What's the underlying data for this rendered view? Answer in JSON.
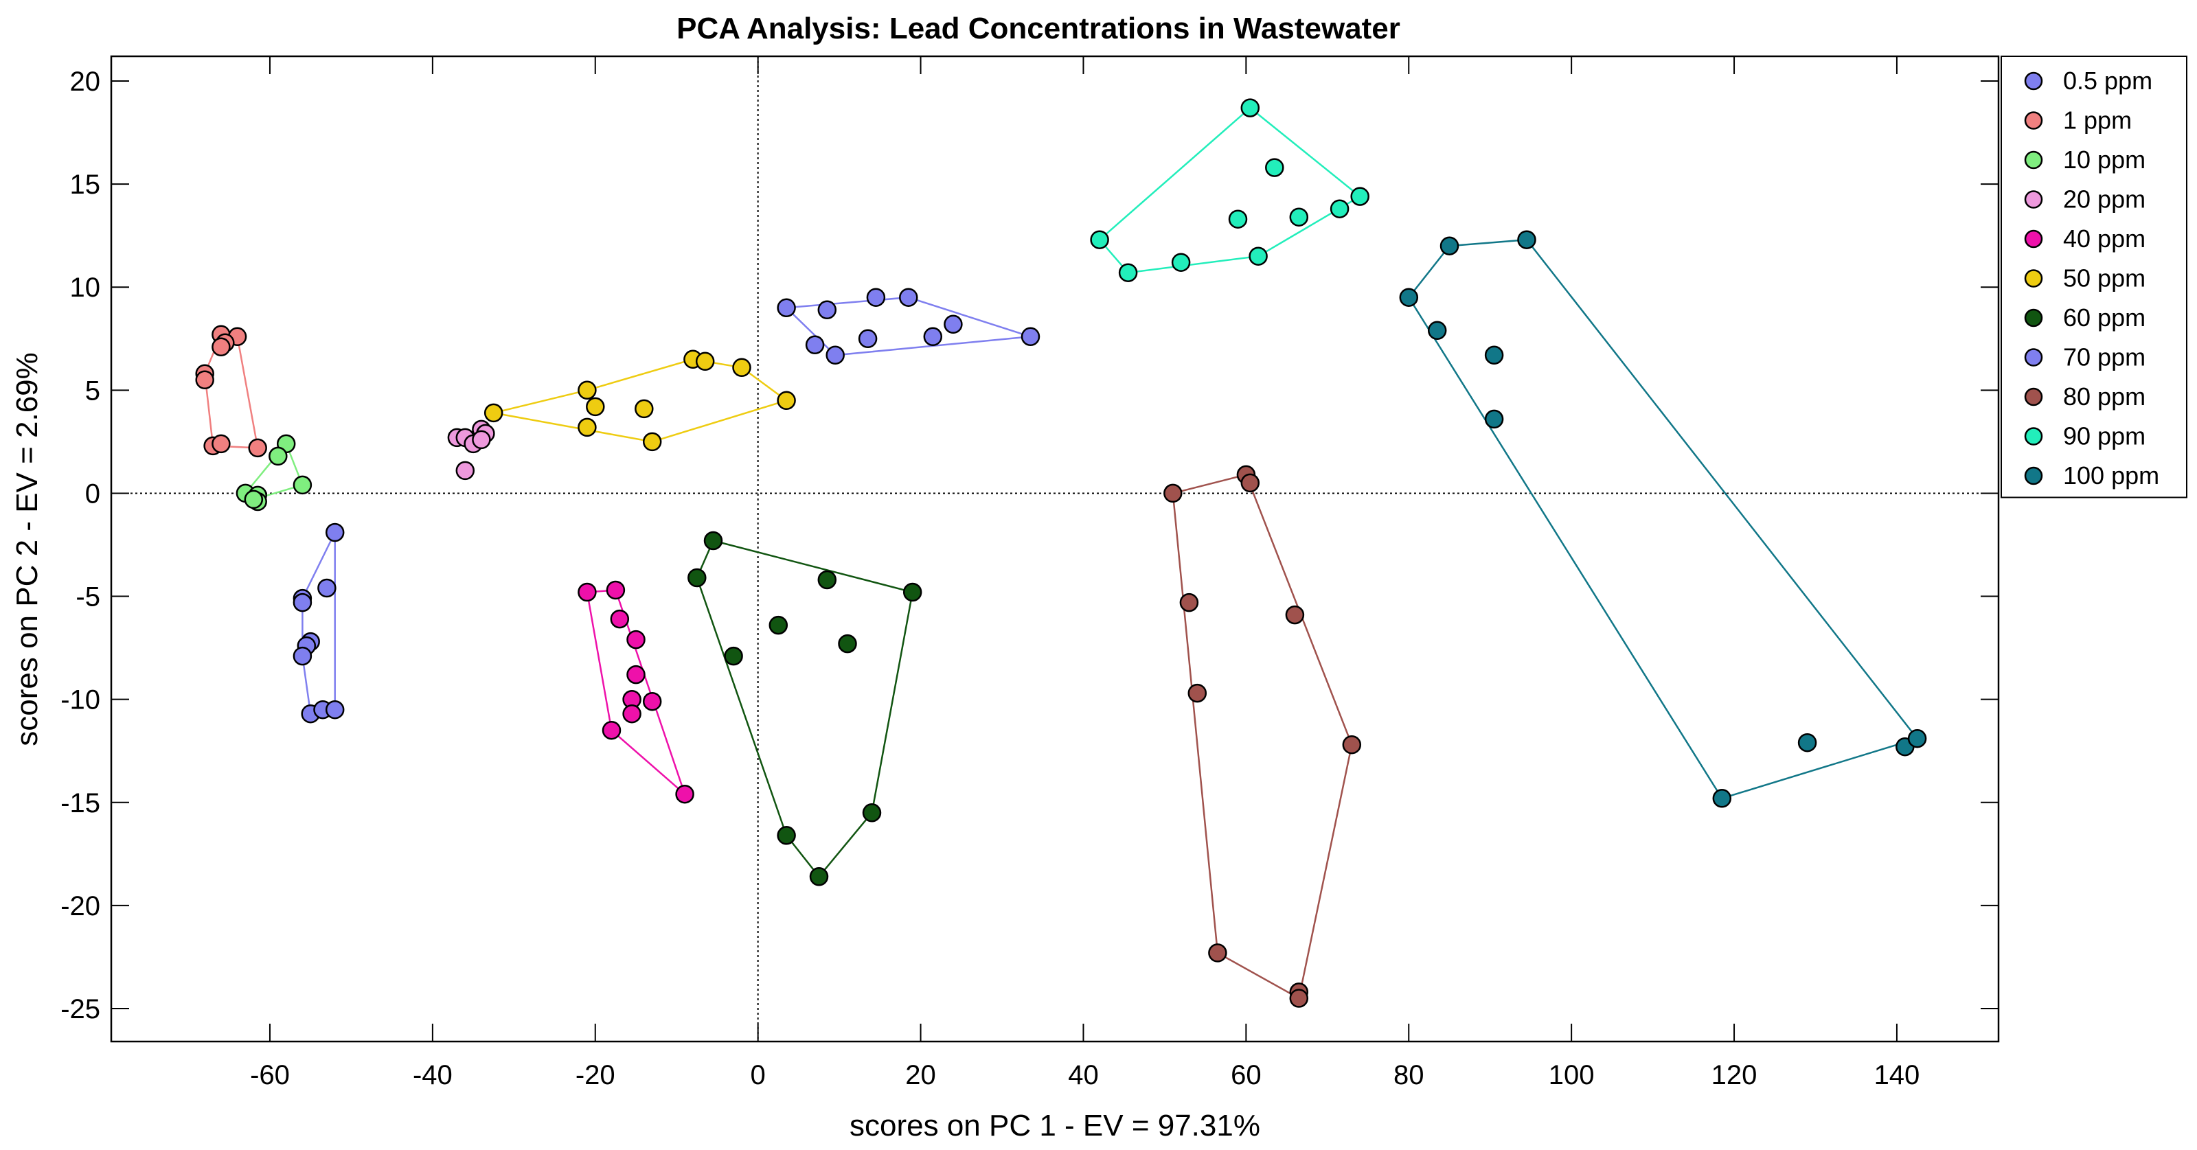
{
  "chart_data": {
    "type": "scatter",
    "title": "PCA Analysis: Lead Concentrations in Wastewater",
    "xlabel": "scores on PC 1 - EV = 97.31%",
    "ylabel": "scores on PC 2 - EV = 2.69%",
    "xlim": [
      -79.5,
      152.5
    ],
    "ylim": [
      -26.6,
      21.2
    ],
    "xticks": [
      -60,
      -40,
      -20,
      0,
      20,
      40,
      60,
      80,
      100,
      120,
      140
    ],
    "yticks": [
      20,
      15,
      10,
      5,
      0,
      -5,
      -10,
      -15,
      -20,
      -25
    ],
    "xtick_labels": [
      "-60",
      "-40",
      "-20",
      "0",
      "20",
      "40",
      "60",
      "80",
      "100",
      "120",
      "140"
    ],
    "ytick_labels": [
      "20",
      "15",
      "10",
      "5",
      "0",
      "-5",
      "-10",
      "-15",
      "-20",
      "-25"
    ],
    "grid": false,
    "zero_lines": true,
    "legend_position": "outside-top-right",
    "series": [
      {
        "name": "0.5 ppm",
        "color": "#7f7fef",
        "points": [
          [
            -52,
            -1.9
          ],
          [
            -53,
            -4.6
          ],
          [
            -56,
            -5.1
          ],
          [
            -56,
            -5.3
          ],
          [
            -55,
            -7.2
          ],
          [
            -55.5,
            -7.4
          ],
          [
            -56,
            -7.9
          ],
          [
            -55,
            -10.7
          ],
          [
            -53.5,
            -10.5
          ],
          [
            -52,
            -10.5
          ]
        ],
        "hull": [
          [
            -52,
            -1.9
          ],
          [
            -56,
            -5.1
          ],
          [
            -56,
            -7.9
          ],
          [
            -55,
            -10.7
          ],
          [
            -52,
            -10.5
          ]
        ]
      },
      {
        "name": "1 ppm",
        "color": "#f08080",
        "points": [
          [
            -66,
            7.7
          ],
          [
            -64,
            7.6
          ],
          [
            -65.5,
            7.3
          ],
          [
            -66,
            7.1
          ],
          [
            -68,
            5.8
          ],
          [
            -68,
            5.5
          ],
          [
            -67,
            2.3
          ],
          [
            -66,
            2.4
          ],
          [
            -61.5,
            2.2
          ]
        ],
        "hull": [
          [
            -66,
            7.7
          ],
          [
            -64,
            7.6
          ],
          [
            -61.5,
            2.2
          ],
          [
            -67,
            2.3
          ],
          [
            -68,
            5.8
          ]
        ]
      },
      {
        "name": "10 ppm",
        "color": "#7fee7f",
        "points": [
          [
            -58,
            2.4
          ],
          [
            -59,
            1.8
          ],
          [
            -56,
            0.4
          ],
          [
            -63,
            0
          ],
          [
            -61.5,
            -0.1
          ],
          [
            -61.5,
            -0.4
          ],
          [
            -62,
            -0.3
          ]
        ],
        "hull": [
          [
            -58,
            2.4
          ],
          [
            -56,
            0.4
          ],
          [
            -62,
            -0.3
          ],
          [
            -63,
            0
          ]
        ]
      },
      {
        "name": "20 ppm",
        "color": "#ee99dd",
        "points": [
          [
            -37,
            2.7
          ],
          [
            -36,
            2.7
          ],
          [
            -35,
            2.4
          ],
          [
            -34,
            3.1
          ],
          [
            -33.5,
            2.9
          ],
          [
            -36,
            1.1
          ],
          [
            -34,
            2.6
          ]
        ],
        "hull": []
      },
      {
        "name": "40 ppm",
        "color": "#ee11aa",
        "points": [
          [
            -21,
            -4.8
          ],
          [
            -17.5,
            -4.7
          ],
          [
            -17,
            -6.1
          ],
          [
            -15,
            -7.1
          ],
          [
            -15,
            -8.8
          ],
          [
            -15.5,
            -10
          ],
          [
            -15.5,
            -10.7
          ],
          [
            -13,
            -10.1
          ],
          [
            -18,
            -11.5
          ],
          [
            -9,
            -14.6
          ]
        ],
        "hull": [
          [
            -21,
            -4.8
          ],
          [
            -17.5,
            -4.7
          ],
          [
            -9,
            -14.6
          ],
          [
            -18,
            -11.5
          ]
        ]
      },
      {
        "name": "50 ppm",
        "color": "#eecc11",
        "points": [
          [
            -8,
            6.5
          ],
          [
            -6.5,
            6.4
          ],
          [
            -2,
            6.1
          ],
          [
            3.5,
            4.5
          ],
          [
            -21,
            5
          ],
          [
            -20,
            4.2
          ],
          [
            -32.5,
            3.9
          ],
          [
            -21,
            3.2
          ],
          [
            -14,
            4.1
          ],
          [
            -13,
            2.5
          ]
        ],
        "hull": [
          [
            -8,
            6.5
          ],
          [
            -2,
            6.1
          ],
          [
            3.5,
            4.5
          ],
          [
            -13,
            2.5
          ],
          [
            -32.5,
            3.9
          ],
          [
            -21,
            5
          ]
        ]
      },
      {
        "name": "60 ppm",
        "color": "#115511",
        "points": [
          [
            -5.5,
            -2.3
          ],
          [
            -7.5,
            -4.1
          ],
          [
            8.5,
            -4.2
          ],
          [
            19,
            -4.8
          ],
          [
            2.5,
            -6.4
          ],
          [
            11,
            -7.3
          ],
          [
            -3,
            -7.9
          ],
          [
            3.5,
            -16.6
          ],
          [
            14,
            -15.5
          ],
          [
            7.5,
            -18.6
          ]
        ],
        "hull": [
          [
            -5.5,
            -2.3
          ],
          [
            19,
            -4.8
          ],
          [
            14,
            -15.5
          ],
          [
            7.5,
            -18.6
          ],
          [
            3.5,
            -16.6
          ],
          [
            -7.5,
            -4.1
          ]
        ]
      },
      {
        "name": "70 ppm",
        "color": "#7f7fef",
        "points": [
          [
            3.5,
            9
          ],
          [
            8.5,
            8.9
          ],
          [
            14.5,
            9.5
          ],
          [
            18.5,
            9.5
          ],
          [
            7,
            7.2
          ],
          [
            13.5,
            7.5
          ],
          [
            9.5,
            6.7
          ],
          [
            21.5,
            7.6
          ],
          [
            24,
            8.2
          ],
          [
            33.5,
            7.6
          ]
        ],
        "hull": [
          [
            3.5,
            9
          ],
          [
            18.5,
            9.5
          ],
          [
            33.5,
            7.6
          ],
          [
            9.5,
            6.7
          ]
        ]
      },
      {
        "name": "80 ppm",
        "color": "#a0524d",
        "points": [
          [
            51,
            0
          ],
          [
            60,
            0.9
          ],
          [
            60.5,
            0.5
          ],
          [
            53,
            -5.3
          ],
          [
            66,
            -5.9
          ],
          [
            54,
            -9.7
          ],
          [
            73,
            -12.2
          ],
          [
            56.5,
            -22.3
          ],
          [
            66.5,
            -24.2
          ],
          [
            66.5,
            -24.5
          ]
        ],
        "hull": [
          [
            51,
            0
          ],
          [
            60,
            0.9
          ],
          [
            73,
            -12.2
          ],
          [
            66.5,
            -24.5
          ],
          [
            56.5,
            -22.3
          ]
        ]
      },
      {
        "name": "90 ppm",
        "color": "#22eebb",
        "points": [
          [
            60.5,
            18.7
          ],
          [
            63.5,
            15.8
          ],
          [
            74,
            14.4
          ],
          [
            71.5,
            13.8
          ],
          [
            66.5,
            13.4
          ],
          [
            59,
            13.3
          ],
          [
            42,
            12.3
          ],
          [
            61.5,
            11.5
          ],
          [
            52,
            11.2
          ],
          [
            45.5,
            10.7
          ]
        ],
        "hull": [
          [
            60.5,
            18.7
          ],
          [
            74,
            14.4
          ],
          [
            61.5,
            11.5
          ],
          [
            45.5,
            10.7
          ],
          [
            42,
            12.3
          ]
        ]
      },
      {
        "name": "100 ppm",
        "color": "#117788",
        "points": [
          [
            94.5,
            12.3
          ],
          [
            85,
            12
          ],
          [
            80,
            9.5
          ],
          [
            83.5,
            7.9
          ],
          [
            90.5,
            6.7
          ],
          [
            90.5,
            3.6
          ],
          [
            118.5,
            -14.8
          ],
          [
            129,
            -12.1
          ],
          [
            141,
            -12.3
          ],
          [
            142.5,
            -11.9
          ]
        ],
        "hull": [
          [
            94.5,
            12.3
          ],
          [
            142.5,
            -11.9
          ],
          [
            118.5,
            -14.8
          ],
          [
            80,
            9.5
          ],
          [
            85,
            12
          ]
        ]
      }
    ]
  }
}
